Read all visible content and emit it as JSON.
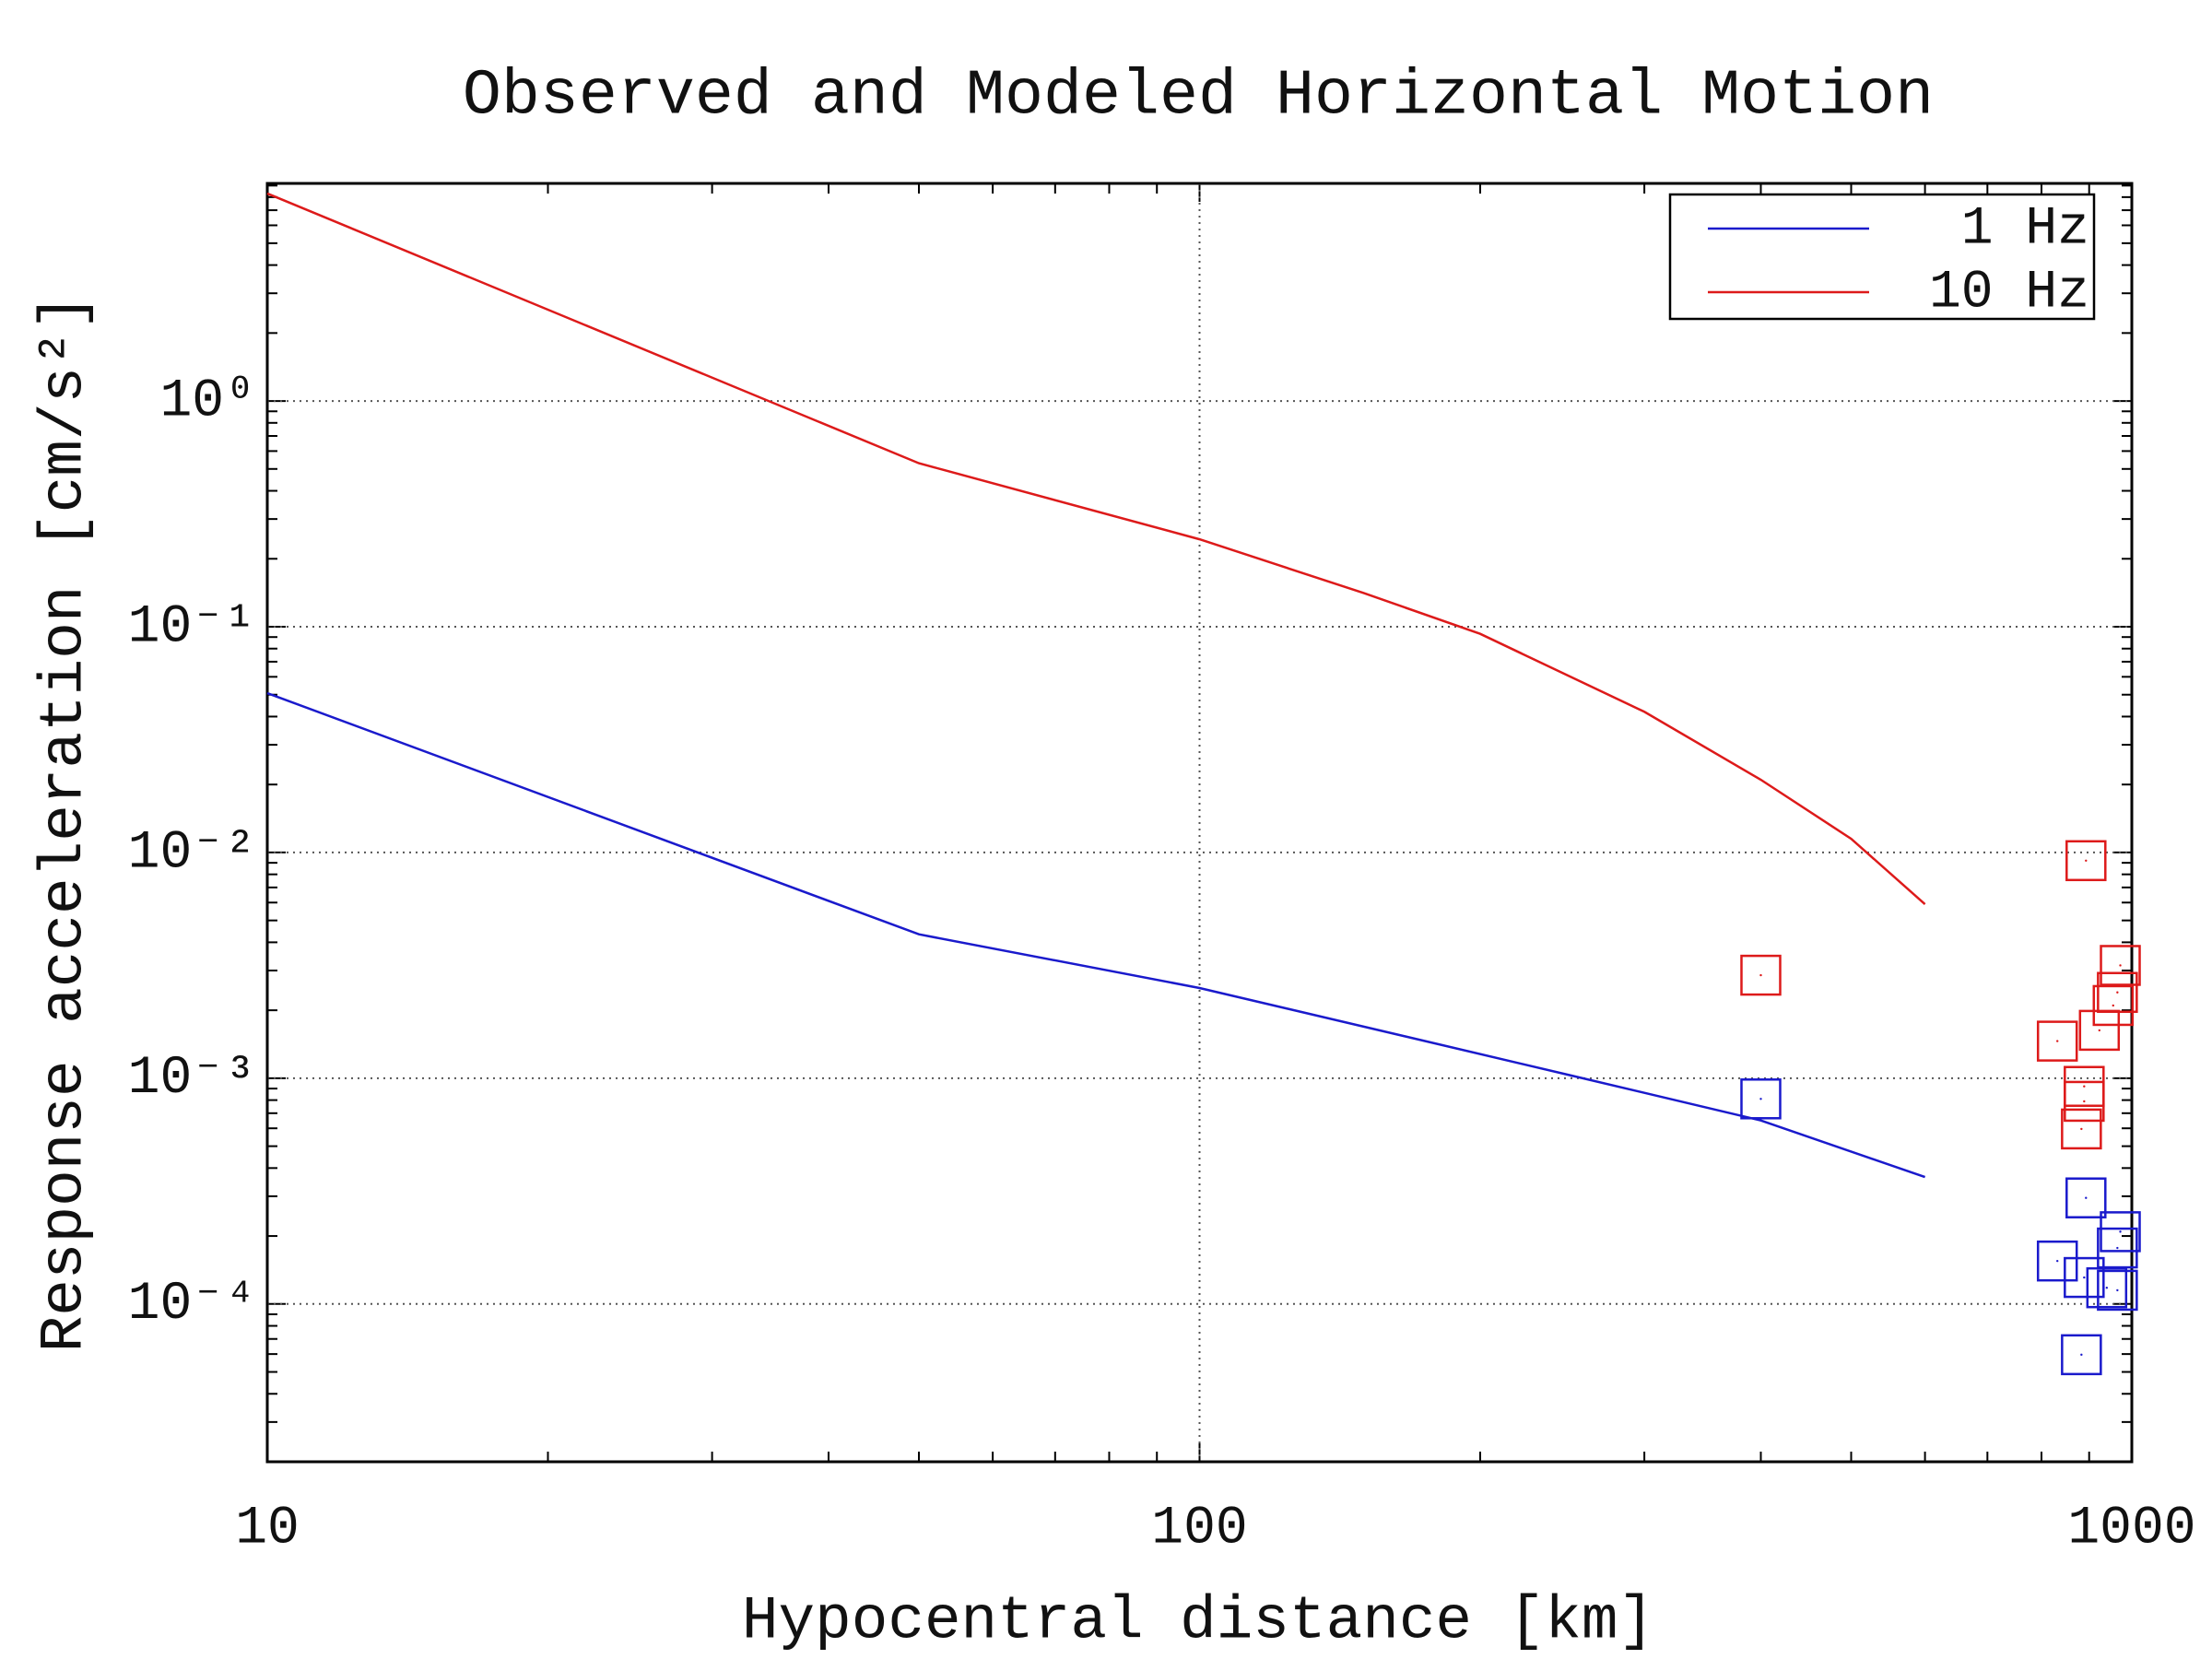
{
  "chart_data": {
    "type": "line",
    "title": "Observed and Modeled Horizontal Motion",
    "xlabel": "Hypocentral distance [km]",
    "ylabel": "Response acceleration [cm/s²]",
    "xscale": "log",
    "yscale": "log",
    "grid": true,
    "legend": "upper right",
    "xlim": [
      10,
      1000
    ],
    "xticks": [
      10,
      100,
      1000
    ],
    "ylim": [
      2e-05,
      9.2
    ],
    "yticks": [
      {
        "value": 1,
        "label": "10⁰"
      },
      {
        "value": 0.1,
        "label": "10⁻¹"
      },
      {
        "value": 0.01,
        "label": "10⁻²"
      },
      {
        "value": 0.001,
        "label": "10⁻³"
      },
      {
        "value": 0.0001,
        "label": "10⁻⁴"
      }
    ],
    "series": [
      {
        "name": "1 Hz",
        "color": "#1a1acc",
        "x": [
          10,
          50,
          100,
          250,
          400,
          600
        ],
        "values": [
          0.0508,
          0.00434,
          0.00251,
          0.00103,
          0.00065,
          0.000365
        ],
        "observed_x": [
          400,
          893,
          832,
          972,
          965,
          889,
          940,
          965,
          883
        ],
        "observed_values": [
          0.00081,
          0.000295,
          0.000155,
          0.000209,
          0.000177,
          0.000131,
          0.000118,
          0.000115,
          5.96e-05
        ]
      },
      {
        "name": "10 Hz",
        "color": "#dd1a1a",
        "x": [
          10,
          50,
          100,
          150,
          200,
          300,
          400,
          500,
          600
        ],
        "values": [
          8.3,
          0.53,
          0.244,
          0.141,
          0.093,
          0.042,
          0.021,
          0.0115,
          0.0059
        ],
        "observed_x": [
          400,
          893,
          972,
          965,
          955,
          923,
          832,
          889,
          889,
          883
        ],
        "observed_values": [
          0.00286,
          0.0092,
          0.00316,
          0.0024,
          0.0021,
          0.00163,
          0.00146,
          0.00092,
          0.00079,
          0.000596
        ]
      }
    ]
  }
}
